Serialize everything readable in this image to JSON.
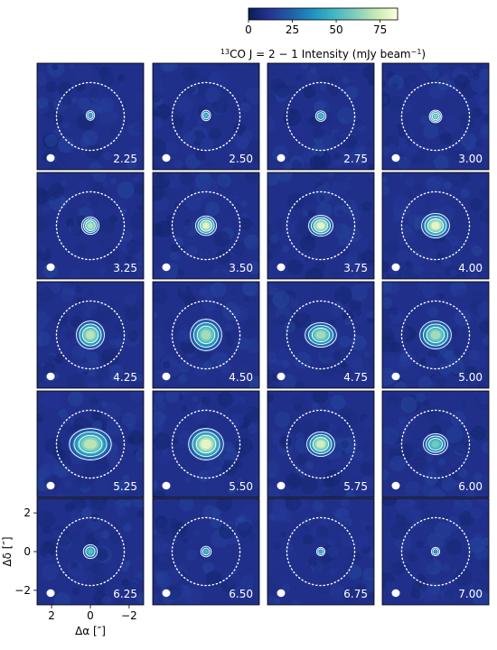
{
  "chart_data": {
    "type": "heatmap",
    "description_of_panels": "channel maps",
    "colorbar": {
      "label_main": "CO",
      "label_sup": "13",
      "label_rest": " J = 2 − 1 Intensity (mJy beam",
      "label_unit_sup": "−1",
      "label_close": ")",
      "ticks": [
        "0",
        "25",
        "50",
        "75"
      ],
      "range": [
        0,
        85
      ],
      "colormap": [
        "#081d58",
        "#253494",
        "#225ea8",
        "#1d91c0",
        "#41b6c4",
        "#7fcdbb",
        "#c7e9b4",
        "#ffffd9"
      ]
    },
    "channels": [
      {
        "label": "2.25",
        "peak": 0.55,
        "sx": 0.12,
        "sy": 0.14,
        "dx": 0.0,
        "dy": 0.05,
        "contours": 2
      },
      {
        "label": "2.50",
        "peak": 0.6,
        "sx": 0.13,
        "sy": 0.15,
        "dx": 0.0,
        "dy": 0.05,
        "contours": 2
      },
      {
        "label": "2.75",
        "peak": 0.6,
        "sx": 0.15,
        "sy": 0.15,
        "dx": 0.0,
        "dy": 0.02,
        "contours": 2
      },
      {
        "label": "3.00",
        "peak": 0.75,
        "sx": 0.18,
        "sy": 0.18,
        "dx": 0.0,
        "dy": 0.0,
        "contours": 3
      },
      {
        "label": "3.25",
        "peak": 0.85,
        "sx": 0.25,
        "sy": 0.25,
        "dx": 0.0,
        "dy": 0.0,
        "contours": 3
      },
      {
        "label": "3.50",
        "peak": 0.95,
        "sx": 0.3,
        "sy": 0.28,
        "dx": 0.0,
        "dy": 0.0,
        "contours": 3
      },
      {
        "label": "3.75",
        "peak": 0.95,
        "sx": 0.35,
        "sy": 0.3,
        "dx": 0.0,
        "dy": 0.0,
        "contours": 3
      },
      {
        "label": "4.00",
        "peak": 0.95,
        "sx": 0.4,
        "sy": 0.35,
        "dx": 0.0,
        "dy": 0.0,
        "contours": 3
      },
      {
        "label": "4.25",
        "peak": 0.85,
        "sx": 0.4,
        "sy": 0.4,
        "dx": 0.0,
        "dy": 0.0,
        "contours": 3
      },
      {
        "label": "4.50",
        "peak": 0.8,
        "sx": 0.45,
        "sy": 0.45,
        "dx": 0.0,
        "dy": 0.0,
        "contours": 3
      },
      {
        "label": "4.75",
        "peak": 0.8,
        "sx": 0.45,
        "sy": 0.35,
        "dx": 0.0,
        "dy": 0.0,
        "contours": 3
      },
      {
        "label": "5.00",
        "peak": 0.8,
        "sx": 0.45,
        "sy": 0.4,
        "dx": 0.0,
        "dy": 0.0,
        "contours": 3
      },
      {
        "label": "5.25",
        "peak": 0.85,
        "sx": 0.6,
        "sy": 0.45,
        "dx": 0.0,
        "dy": 0.0,
        "contours": 3
      },
      {
        "label": "5.50",
        "peak": 0.95,
        "sx": 0.5,
        "sy": 0.45,
        "dx": 0.0,
        "dy": 0.0,
        "contours": 3
      },
      {
        "label": "5.75",
        "peak": 0.9,
        "sx": 0.4,
        "sy": 0.35,
        "dx": 0.0,
        "dy": 0.0,
        "contours": 3
      },
      {
        "label": "6.00",
        "peak": 0.7,
        "sx": 0.35,
        "sy": 0.3,
        "dx": 0.0,
        "dy": 0.0,
        "contours": 3
      },
      {
        "label": "6.25",
        "peak": 0.65,
        "sx": 0.2,
        "sy": 0.2,
        "dx": 0.0,
        "dy": 0.0,
        "contours": 2
      },
      {
        "label": "6.50",
        "peak": 0.6,
        "sx": 0.15,
        "sy": 0.15,
        "dx": 0.0,
        "dy": 0.0,
        "contours": 2
      },
      {
        "label": "6.75",
        "peak": 0.55,
        "sx": 0.12,
        "sy": 0.12,
        "dx": 0.0,
        "dy": 0.0,
        "contours": 2
      },
      {
        "label": "7.00",
        "peak": 0.5,
        "sx": 0.12,
        "sy": 0.12,
        "dx": 0.0,
        "dy": 0.0,
        "contours": 2
      }
    ],
    "x_axis": {
      "label_main": "Δα [",
      "label_unit": "″",
      "label_close": "]",
      "ticks": [
        {
          "v": 2,
          "t": "2"
        },
        {
          "v": 0,
          "t": "0"
        },
        {
          "v": -2,
          "t": "−2"
        }
      ],
      "range": [
        2.75,
        -2.75
      ]
    },
    "y_axis": {
      "label_main": "Δδ [",
      "label_unit": "″",
      "label_close": "]",
      "ticks": [
        {
          "v": 2,
          "t": "2"
        },
        {
          "v": 0,
          "t": "0"
        },
        {
          "v": -2,
          "t": "−2"
        }
      ],
      "range": [
        -2.75,
        2.75
      ]
    },
    "dotted_circle_radius": 1.75,
    "grid": false
  }
}
